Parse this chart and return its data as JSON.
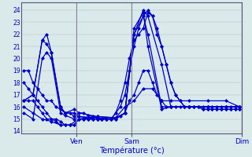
{
  "title": "Température (°c)",
  "background_color": "#daeaea",
  "grid_color": "#b0b8cc",
  "line_color": "#0000cc",
  "marker": "D",
  "markersize": 2.0,
  "linewidth": 0.9,
  "ylim": [
    13.8,
    24.6
  ],
  "xlim": [
    -0.5,
    47.5
  ],
  "yticks": [
    14,
    15,
    16,
    17,
    18,
    19,
    20,
    21,
    22,
    23,
    24
  ],
  "xtick_positions": [
    11.5,
    23.5,
    47.5
  ],
  "xtick_labels": [
    "Ven",
    "Sam",
    "Dim"
  ],
  "vlines": [
    11.5,
    23.5,
    47.5
  ],
  "lines": [
    [
      0,
      19.0,
      1,
      19.0,
      2,
      18.0,
      3,
      17.5,
      4,
      17.0,
      5,
      16.5,
      6,
      16.5,
      7,
      16.0,
      8,
      15.8,
      9,
      15.5,
      10,
      15.5,
      11,
      15.2,
      12,
      15.5,
      13,
      15.5,
      14,
      15.3,
      15,
      15.2,
      16,
      15.1,
      17,
      15.0,
      18,
      15.0,
      19,
      15.0,
      20,
      15.1,
      21,
      15.2,
      22,
      15.5,
      23,
      16.5,
      24,
      17.0,
      25,
      18.0,
      26,
      19.0,
      27,
      19.0,
      28,
      18.0,
      29,
      17.0,
      30,
      16.5,
      31,
      16.0,
      32,
      16.0,
      33,
      16.0,
      34,
      16.0,
      35,
      16.0,
      36,
      16.0,
      37,
      16.0,
      38,
      16.0,
      39,
      16.0,
      40,
      16.0,
      41,
      16.0,
      42,
      16.0,
      43,
      16.0,
      44,
      16.0,
      45,
      16.0,
      46,
      16.0,
      47,
      16.0
    ],
    [
      0,
      18.0,
      1,
      17.5,
      2,
      17.0,
      3,
      16.5,
      4,
      16.0,
      5,
      15.5,
      6,
      15.0,
      7,
      15.0,
      8,
      14.8,
      9,
      14.5,
      10,
      14.5,
      11,
      14.5,
      12,
      15.0,
      13,
      15.0,
      14,
      15.0,
      15,
      15.0,
      16,
      15.0,
      17,
      15.0,
      18,
      15.0,
      19,
      15.0,
      20,
      15.5,
      21,
      16.0,
      22,
      17.0,
      23,
      19.0,
      24,
      21.0,
      25,
      22.5,
      26,
      23.5,
      27,
      24.0,
      28,
      23.5,
      29,
      22.5,
      30,
      21.0,
      31,
      19.5,
      32,
      18.0,
      33,
      17.0,
      34,
      16.5,
      35,
      16.0,
      36,
      16.0,
      37,
      16.0,
      38,
      16.0,
      39,
      15.8,
      40,
      15.8,
      41,
      15.8,
      42,
      15.8,
      43,
      15.8,
      44,
      15.8,
      45,
      15.8,
      46,
      15.8,
      47,
      15.8
    ],
    [
      0,
      16.5,
      1,
      16.5,
      2,
      16.5,
      3,
      16.0,
      4,
      15.5,
      5,
      15.0,
      6,
      15.0,
      7,
      14.8,
      8,
      14.5,
      9,
      14.5,
      10,
      14.5,
      11,
      14.5,
      12,
      15.0,
      13,
      15.0,
      14,
      15.0,
      15,
      15.0,
      16,
      15.0,
      17,
      15.0,
      18,
      15.0,
      19,
      15.0,
      20,
      15.5,
      21,
      16.5,
      22,
      18.0,
      23,
      20.0,
      24,
      21.5,
      25,
      22.0,
      26,
      22.5,
      27,
      23.8,
      28,
      23.5,
      29,
      22.0,
      30,
      21.0,
      31,
      19.5,
      32,
      18.0,
      33,
      17.0,
      34,
      16.5,
      35,
      16.0,
      36,
      16.0,
      37,
      16.0,
      38,
      16.0,
      39,
      15.8,
      40,
      15.8,
      41,
      15.8,
      42,
      15.8,
      43,
      15.8,
      44,
      15.8,
      45,
      15.8,
      46,
      15.8,
      47,
      15.8
    ],
    [
      0,
      16.5,
      2,
      17.0,
      4,
      21.5,
      5,
      21.2,
      6,
      20.5,
      8,
      16.0,
      9,
      15.5,
      11,
      15.5,
      12,
      15.2,
      16,
      15.1,
      20,
      15.0,
      22,
      15.5,
      24,
      22.0,
      26,
      24.0,
      27,
      23.5,
      30,
      19.5,
      32,
      16.0,
      36,
      16.0,
      40,
      16.0,
      44,
      16.0,
      47,
      16.0
    ],
    [
      0,
      16.5,
      2,
      17.0,
      4,
      21.5,
      5,
      22.0,
      6,
      20.5,
      8,
      16.0,
      9,
      15.5,
      11,
      15.8,
      12,
      15.5,
      16,
      15.2,
      20,
      15.1,
      22,
      15.5,
      24,
      22.5,
      26,
      23.8,
      27,
      21.0,
      30,
      15.8,
      32,
      16.0,
      36,
      16.0,
      40,
      16.0,
      44,
      16.0,
      47,
      16.0
    ],
    [
      0,
      16.0,
      2,
      15.5,
      4,
      15.0,
      6,
      14.8,
      8,
      14.5,
      10,
      14.5,
      12,
      15.0,
      16,
      15.2,
      20,
      15.1,
      22,
      16.0,
      24,
      16.5,
      26,
      17.5,
      28,
      17.5,
      30,
      16.5,
      32,
      16.5,
      36,
      16.5,
      40,
      16.5,
      44,
      16.5,
      47,
      16.0
    ],
    [
      0,
      15.5,
      2,
      15.0,
      4,
      20.0,
      5,
      20.5,
      6,
      20.0,
      8,
      15.5,
      9,
      15.3,
      11,
      15.0,
      12,
      15.2,
      16,
      15.0,
      20,
      15.0,
      22,
      15.5,
      24,
      22.0,
      26,
      23.5,
      27,
      22.0,
      30,
      16.0,
      32,
      16.0,
      36,
      16.0,
      40,
      16.0,
      44,
      16.0,
      47,
      16.0
    ]
  ]
}
